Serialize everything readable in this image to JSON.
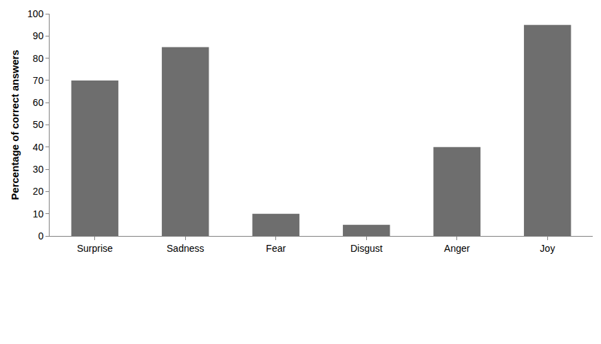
{
  "chart_data": {
    "type": "bar",
    "ylabel": "Percentage of correct answers",
    "categories": [
      "Surprise",
      "Sadness",
      "Fear",
      "Disgust",
      "Anger",
      "Joy"
    ],
    "values": [
      70,
      85,
      10,
      5,
      40,
      95
    ],
    "color": "#6e6e6e",
    "ylim": [
      0,
      100
    ],
    "yticks": [
      0,
      10,
      20,
      30,
      40,
      50,
      60,
      70,
      80,
      90,
      100
    ],
    "grid": false
  }
}
